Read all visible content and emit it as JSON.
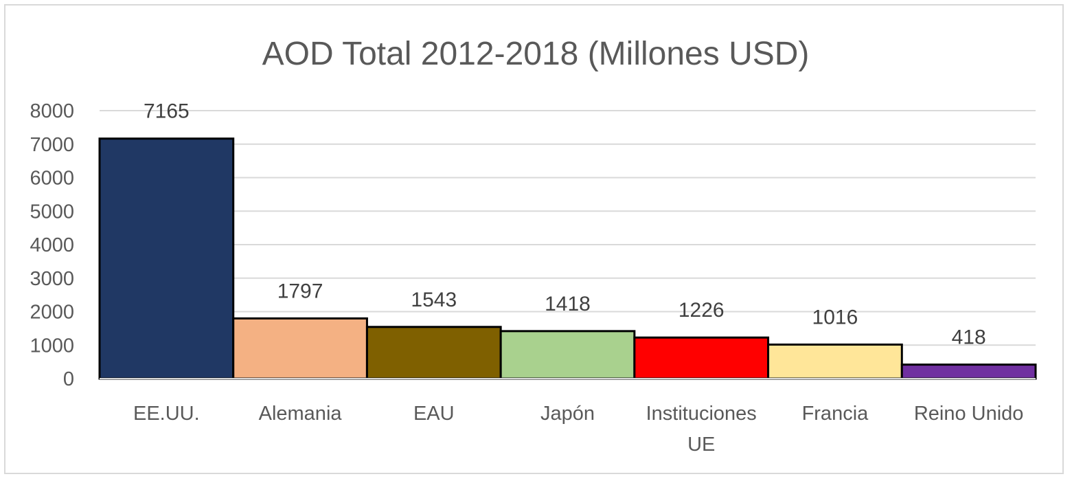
{
  "chart_data": {
    "type": "bar",
    "title": "AOD Total 2012-2018 (Millones USD)",
    "xlabel": "",
    "ylabel": "",
    "ylim": [
      0,
      8000
    ],
    "yticks": [
      "0",
      "1000",
      "2000",
      "3000",
      "4000",
      "5000",
      "6000",
      "7000",
      "8000"
    ],
    "grid": true,
    "legend": "none",
    "categories": [
      [
        "EE.UU."
      ],
      [
        "Alemania"
      ],
      [
        "EAU"
      ],
      [
        "Japón"
      ],
      [
        "Instituciones",
        "UE"
      ],
      [
        "Francia"
      ],
      [
        "Reino Unido"
      ]
    ],
    "values": [
      7165,
      1797,
      1543,
      1418,
      1226,
      1016,
      418
    ],
    "data_labels": [
      "7165",
      "1797",
      "1543",
      "1418",
      "1226",
      "1016",
      "418"
    ],
    "colors": [
      "#203864",
      "#f4b183",
      "#7f6000",
      "#a9d18e",
      "#ff0000",
      "#ffe699",
      "#7030a0"
    ]
  }
}
